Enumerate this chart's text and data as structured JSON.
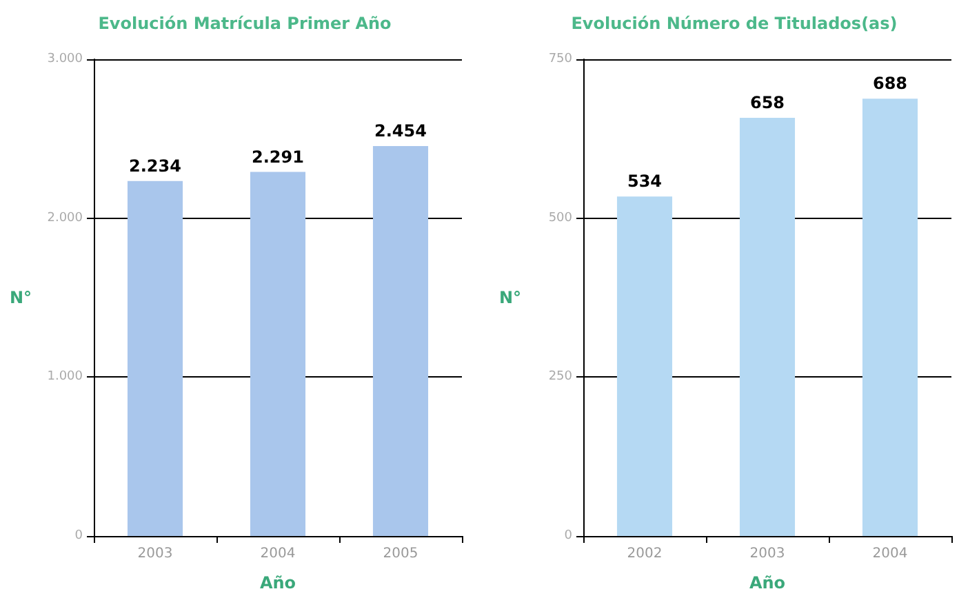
{
  "chart_data": [
    {
      "type": "bar",
      "title": "Evolución Matrícula Primer Año",
      "xlabel": "Año",
      "ylabel": "N°",
      "categories": [
        "2003",
        "2004",
        "2005"
      ],
      "series": [
        {
          "color": "#a9c6ec",
          "values": [
            2234,
            2291,
            2454
          ],
          "value_labels": [
            "2.234",
            "2.291",
            "2.454"
          ]
        }
      ],
      "ylim": [
        0,
        3000
      ],
      "yticks": [
        0,
        {
          "value": 1000,
          "label": "1.000"
        },
        {
          "value": 2000,
          "label": "2.000"
        },
        {
          "value": 3000,
          "label": "3.000"
        }
      ],
      "grid": "y"
    },
    {
      "type": "bar",
      "title": "Evolución Número de Titulados(as)",
      "xlabel": "Año",
      "ylabel": "N°",
      "categories": [
        "2002",
        "2003",
        "2004"
      ],
      "series": [
        {
          "color": "#b5d9f3",
          "values": [
            534,
            658,
            688
          ]
        }
      ],
      "ylim": [
        0,
        750
      ],
      "yticks": [
        0,
        250,
        500,
        750
      ],
      "grid": "y",
      "data_labels": true
    }
  ]
}
